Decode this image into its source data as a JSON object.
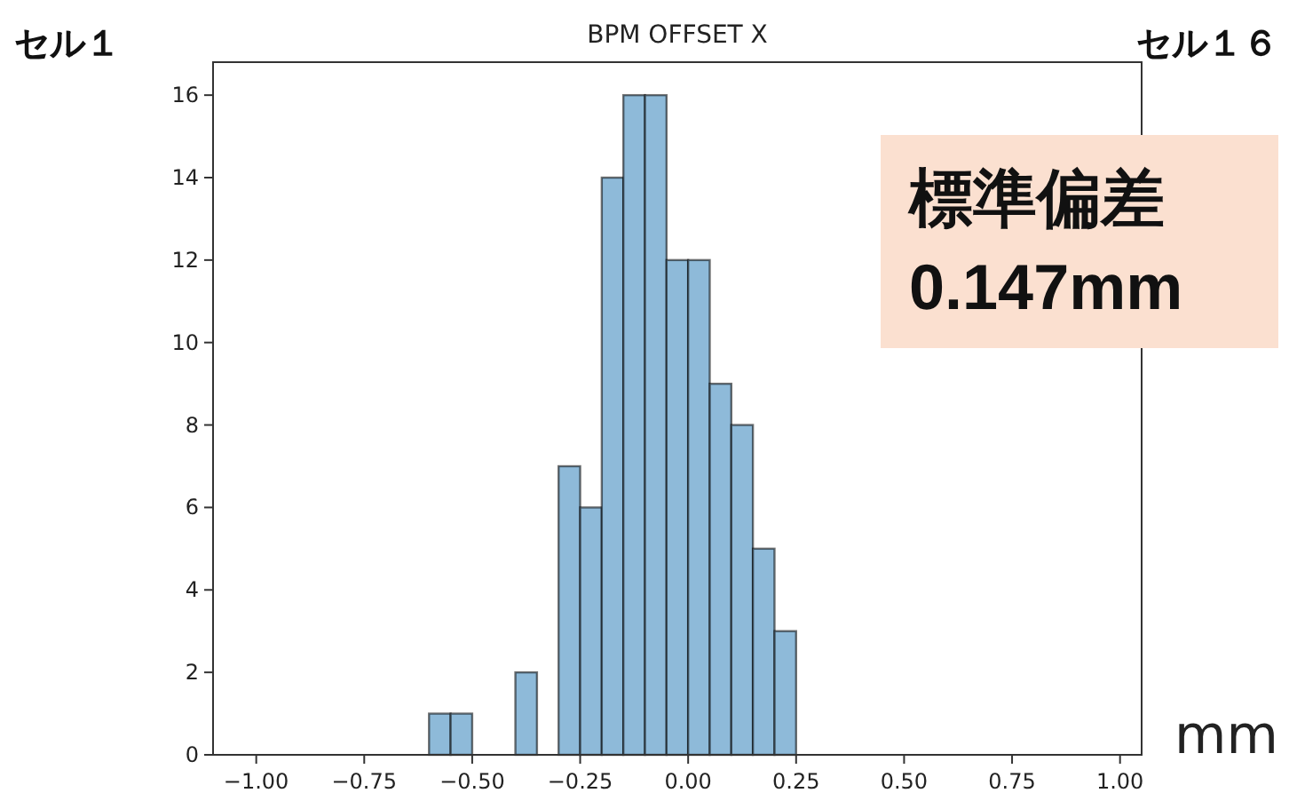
{
  "chart_data": {
    "type": "histogram",
    "title": "BPM OFFSET X",
    "xlabel": "mm",
    "annotations": [
      "セル１",
      "セル１６",
      "標準偏差\n0.147mm"
    ],
    "bins": [
      -0.6,
      -0.55,
      -0.5,
      -0.45,
      -0.4,
      -0.35,
      -0.3,
      -0.25,
      -0.2,
      -0.15,
      -0.1,
      -0.05,
      0,
      0.05,
      0.1,
      0.15,
      0.2,
      0.25
    ],
    "values": [
      1,
      1,
      0,
      0,
      2,
      0,
      7,
      6,
      14,
      16,
      16,
      12,
      12,
      9,
      8,
      5,
      3
    ],
    "color": "#8ebad9",
    "xlim": [
      -1.1,
      1.05
    ],
    "xticks": [
      {
        "value": -1,
        "label": "−1.00"
      },
      {
        "value": -0.75,
        "label": "−0.75"
      },
      {
        "value": -0.5,
        "label": "−0.50"
      },
      {
        "value": -0.25,
        "label": "−0.25"
      },
      {
        "value": 0,
        "label": "0.00"
      },
      {
        "value": 0.25,
        "label": "0.25"
      },
      {
        "value": 0.5,
        "label": "0.50"
      },
      {
        "value": 0.75,
        "label": "0.75"
      },
      {
        "value": 1,
        "label": "1.00"
      }
    ],
    "ylim": [
      0,
      16.8
    ],
    "yticks": [
      0,
      2,
      4,
      6,
      8,
      10,
      12,
      14,
      16
    ]
  }
}
